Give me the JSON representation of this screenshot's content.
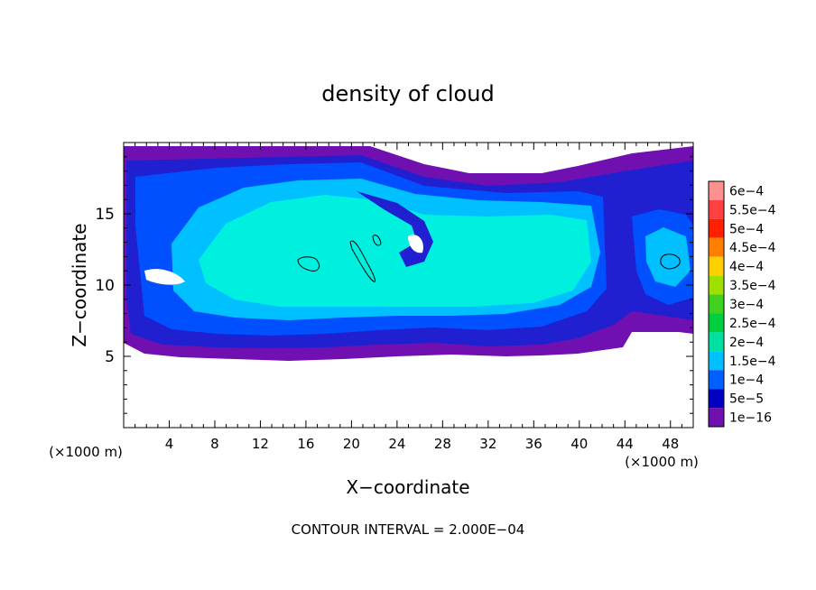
{
  "chart_data": {
    "type": "heatmap",
    "title": "density of cloud",
    "xlabel": "X−coordinate",
    "ylabel": "Z−coordinate",
    "x_unit": "(×1000 m)",
    "y_unit": "(×1000 m)",
    "xlim": [
      0,
      50
    ],
    "ylim": [
      0,
      20
    ],
    "xticks": [
      "4",
      "8",
      "12",
      "16",
      "20",
      "24",
      "28",
      "32",
      "36",
      "40",
      "44",
      "48"
    ],
    "yticks": [
      "5",
      "10",
      "15"
    ],
    "footer": "CONTOUR INTERVAL = 2.000E−04",
    "colorbar": {
      "labels": [
        "6e−4",
        "5.5e−4",
        "5e−4",
        "4.5e−4",
        "4e−4",
        "3.5e−4",
        "3e−4",
        "2.5e−4",
        "2e−4",
        "1.5e−4",
        "1e−4",
        "5e−5",
        "1e−16"
      ],
      "colors": [
        "#ff9090",
        "#ff4040",
        "#ff2000",
        "#ff8000",
        "#ffd000",
        "#a0e000",
        "#40d020",
        "#00d040",
        "#00e0a0",
        "#00c0ff",
        "#0060ff",
        "#0000c0",
        "#7010b0"
      ]
    },
    "field_levels": {
      "1e-16": "#7010b0",
      "5e-5": "#2020d0",
      "1e-4": "#0050ff",
      "1.5e-4": "#00c0ff",
      "2e-4": "#00f0e0"
    }
  }
}
